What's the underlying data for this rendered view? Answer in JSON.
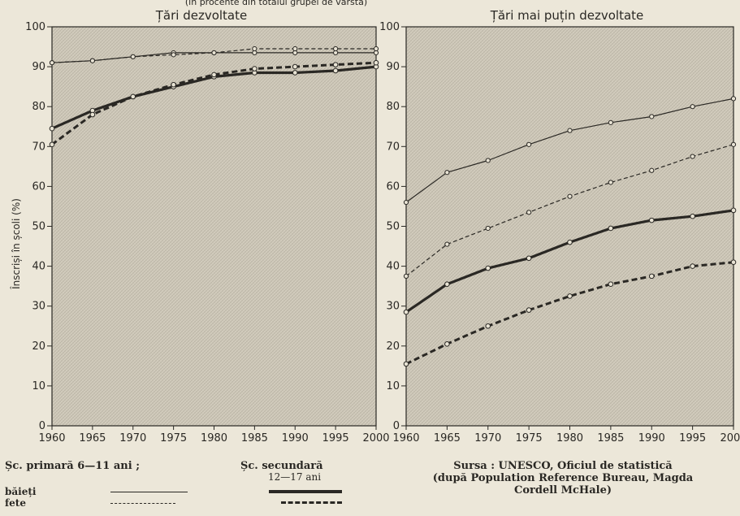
{
  "header_fragment": "(în procente din totalul grupei de vârstă)",
  "y_axis_label": "Înscriși în școli (%)",
  "chart_data": [
    {
      "type": "line",
      "title": "Țări dezvoltate",
      "x": [
        1960,
        1965,
        1970,
        1975,
        1980,
        1985,
        1990,
        1995,
        2000
      ],
      "x_tick_labels": [
        "1960",
        "1965",
        "1970",
        "1975",
        "1980",
        "1985",
        "1990",
        "1995",
        "2000"
      ],
      "ylim": [
        0,
        100
      ],
      "y_ticks": [
        0,
        10,
        20,
        30,
        40,
        50,
        60,
        70,
        80,
        90,
        100
      ],
      "ylabel": "Înscriși în școli (%)",
      "series": [
        {
          "name": "Șc. primară 6—11 ani — băieți",
          "style": "thin-solid",
          "values": [
            91,
            91.5,
            92.5,
            93.5,
            93.5,
            93.5,
            93.5,
            93.5,
            93.5
          ]
        },
        {
          "name": "Șc. primară 6—11 ani — fete",
          "style": "thin-dash",
          "values": [
            91,
            91.5,
            92.5,
            93,
            93.5,
            94.5,
            94.5,
            94.5,
            94.5
          ]
        },
        {
          "name": "Șc. secundară 12—17 ani — băieți",
          "style": "thick-solid",
          "values": [
            74.5,
            79,
            82.5,
            85,
            87.5,
            88.5,
            88.5,
            89,
            90
          ]
        },
        {
          "name": "Șc. secundară 12—17 ani — fete",
          "style": "thick-dash",
          "values": [
            70.5,
            78,
            82.5,
            85.5,
            88,
            89.5,
            90,
            90.5,
            91
          ]
        }
      ]
    },
    {
      "type": "line",
      "title": "Țări mai puțin dezvoltate",
      "x": [
        1960,
        1965,
        1970,
        1975,
        1980,
        1985,
        1990,
        1995,
        2000
      ],
      "x_tick_labels": [
        "1960",
        "1965",
        "1970",
        "1975",
        "1980",
        "1985",
        "1990",
        "1995",
        "2000"
      ],
      "ylim": [
        0,
        100
      ],
      "y_ticks": [
        0,
        10,
        20,
        30,
        40,
        50,
        60,
        70,
        80,
        90,
        100
      ],
      "series": [
        {
          "name": "Șc. primară 6—11 ani — băieți",
          "style": "thin-solid",
          "values": [
            56,
            63.5,
            66.5,
            70.5,
            74,
            76,
            77.5,
            80,
            82
          ]
        },
        {
          "name": "Șc. primară 6—11 ani — fete",
          "style": "thin-dash",
          "values": [
            37.5,
            45.5,
            49.5,
            53.5,
            57.5,
            61,
            64,
            67.5,
            70.5
          ]
        },
        {
          "name": "Șc. secundară 12—17 ani — băieți",
          "style": "thick-solid",
          "values": [
            28.5,
            35.5,
            39.5,
            42,
            46,
            49.5,
            51.5,
            52.5,
            54
          ]
        },
        {
          "name": "Șc. secundară 12—17 ani — fete",
          "style": "thick-dash",
          "values": [
            15.5,
            20.5,
            25,
            29,
            32.5,
            35.5,
            37.5,
            40,
            41
          ]
        }
      ]
    }
  ],
  "legend": {
    "primary_label": "Șc.   primară   6—11   ani ;",
    "secondary_label": "Șc.   secundară",
    "secondary_age": "12—17  ani",
    "boys": "băieți",
    "girls": "fete"
  },
  "source": {
    "line1": "Sursa : UNESCO, Oficiul de statistică",
    "line2": "(după Population Reference Bureau, Magda",
    "line3": "Cordell McHale)"
  },
  "colors": {
    "ink": "#2a2824",
    "paper": "#ece7d9",
    "plot_bg": "#cfc9ba"
  }
}
